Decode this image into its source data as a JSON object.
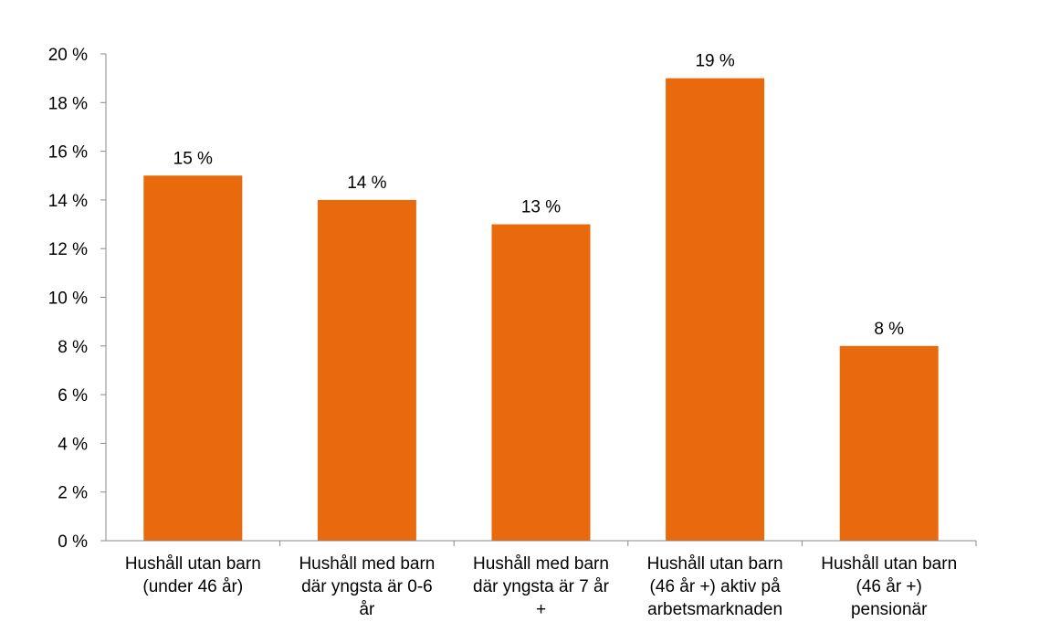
{
  "chart_data": {
    "type": "bar",
    "title": "",
    "xlabel": "",
    "ylabel": "",
    "ylim": [
      0,
      20
    ],
    "y_step": 2,
    "y_tick_suffix": " %",
    "grid": false,
    "legend": "none",
    "bar_color": "#E96A0C",
    "categories": [
      [
        "Hushåll utan barn",
        "(under 46 år)"
      ],
      [
        "Hushåll med barn",
        "där yngsta är 0-6",
        "år"
      ],
      [
        "Hushåll med barn",
        "där yngsta är 7 år",
        "+"
      ],
      [
        "Hushåll utan barn",
        "(46 år +) aktiv på",
        "arbetsmarknaden"
      ],
      [
        "Hushåll utan barn",
        "(46 år +)",
        "pensionär"
      ]
    ],
    "values": [
      15,
      14,
      13,
      19,
      8
    ],
    "data_labels": [
      "15 %",
      "14 %",
      "13 %",
      "19 %",
      "8 %"
    ]
  }
}
